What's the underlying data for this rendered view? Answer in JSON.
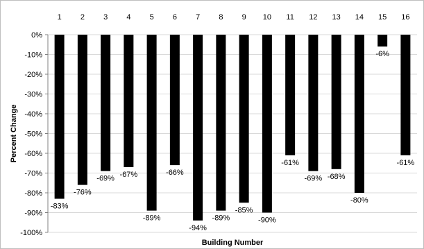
{
  "chart_data": {
    "type": "bar",
    "title": "",
    "xlabel": "Building Number",
    "ylabel": "Percent Change",
    "categories": [
      "1",
      "2",
      "3",
      "4",
      "5",
      "6",
      "7",
      "8",
      "9",
      "10",
      "11",
      "12",
      "13",
      "14",
      "15",
      "16"
    ],
    "series": [
      {
        "values": [
          -83,
          -76,
          -69,
          -67,
          -89,
          -66,
          -94,
          -89,
          -85,
          -90,
          -61,
          -69,
          -68,
          -80,
          -6,
          -61
        ],
        "data_labels": [
          "-83%",
          "-76%",
          "-69%",
          "-67%",
          "-89%",
          "-66%",
          "-94%",
          "-89%",
          "-85%",
          "-90%",
          "-61%",
          "-69%",
          "-68%",
          "-80%",
          "-6%",
          "-61%"
        ],
        "color": "#000000"
      }
    ],
    "ylim": [
      -100,
      0
    ],
    "y_ticks": [
      0,
      -10,
      -20,
      -30,
      -40,
      -50,
      -60,
      -70,
      -80,
      -90,
      -100
    ],
    "y_tick_labels": [
      "0%",
      "-10%",
      "-20%",
      "-30%",
      "-40%",
      "-50%",
      "-60%",
      "-70%",
      "-80%",
      "-90%",
      "-100%"
    ],
    "category_axis_position": "top",
    "grid": "horizontal",
    "legend": "none",
    "gridline_color": "#d9d9d9",
    "bar_color": "#000000"
  }
}
